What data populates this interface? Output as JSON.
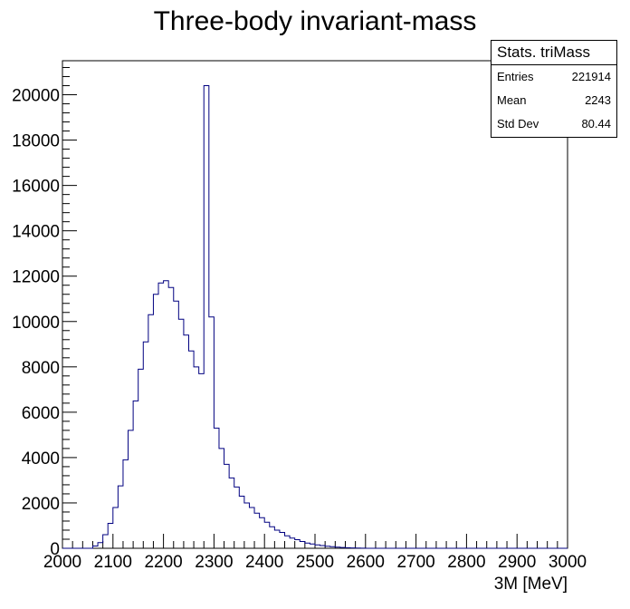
{
  "chart_data": {
    "type": "histogram",
    "title": "Three-body invariant-mass",
    "xlabel": "3M [MeV]",
    "ylabel": "",
    "xlim": [
      2000,
      3000
    ],
    "ylim": [
      0,
      21500
    ],
    "bin_width": 10,
    "x_ticks": [
      "2000",
      "2100",
      "2200",
      "2300",
      "2400",
      "2500",
      "2600",
      "2700",
      "2800",
      "2900",
      "3000"
    ],
    "y_ticks": [
      "0",
      "2000",
      "4000",
      "6000",
      "8000",
      "10000",
      "12000",
      "14000",
      "16000",
      "18000",
      "20000"
    ],
    "line_color": "#000080",
    "bin_edges_start": 2000,
    "values": [
      0,
      0,
      0,
      0,
      0,
      0,
      100,
      250,
      600,
      1100,
      1800,
      2750,
      3900,
      5200,
      6500,
      7900,
      9100,
      10300,
      11200,
      11700,
      11800,
      11500,
      10900,
      10100,
      9400,
      8700,
      8000,
      7700,
      20400,
      10200,
      5300,
      4400,
      3700,
      3100,
      2700,
      2300,
      2000,
      1800,
      1550,
      1350,
      1150,
      950,
      800,
      700,
      550,
      450,
      380,
      300,
      230,
      190,
      150,
      120,
      90,
      70,
      50,
      35,
      25,
      15,
      10,
      5,
      0,
      0,
      0,
      0,
      0,
      0,
      0,
      0,
      0,
      0,
      0,
      0,
      0,
      0,
      0,
      0,
      0,
      0,
      0,
      0,
      0,
      0,
      0,
      0,
      0,
      0,
      0,
      0,
      0,
      0,
      0,
      0,
      0,
      0,
      0,
      0,
      0,
      0,
      0,
      0
    ]
  },
  "stats": {
    "title": "Stats. triMass",
    "rows": [
      {
        "label": "Entries",
        "value": "221914"
      },
      {
        "label": "Mean",
        "value": "2243"
      },
      {
        "label": "Std Dev",
        "value": "80.44"
      }
    ]
  }
}
